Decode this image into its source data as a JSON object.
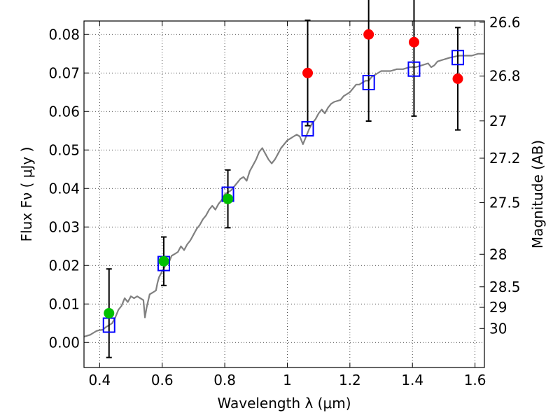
{
  "chart_data": {
    "type": "scatter",
    "xlabel": "Wavelength  λ (μm)",
    "ylabel": "Flux  Fν  ( μJy )",
    "right_ylabel": "Magnitude (AB)",
    "xlim": [
      0.35,
      1.63
    ],
    "ylim": [
      -0.0065,
      0.0835
    ],
    "grid": true,
    "x_ticks": [
      0.4,
      0.6,
      0.8,
      1.0,
      1.2,
      1.4,
      1.6
    ],
    "x_tick_labels": [
      "0.4",
      "0.6",
      "0.8",
      "1",
      "1.2",
      "1.4",
      "1.6"
    ],
    "y_ticks": [
      0.0,
      0.01,
      0.02,
      0.03,
      0.04,
      0.05,
      0.06,
      0.07,
      0.08
    ],
    "y_tick_labels": [
      "0.00",
      "0.01",
      "0.02",
      "0.03",
      "0.04",
      "0.05",
      "0.06",
      "0.07",
      "0.08"
    ],
    "magnitude_ticks": [
      {
        "label": "26.6",
        "mag": 26.6
      },
      {
        "label": "26.8",
        "mag": 26.8
      },
      {
        "label": "27",
        "mag": 27.0
      },
      {
        "label": "27.2",
        "mag": 27.2
      },
      {
        "label": "27.5",
        "mag": 27.5
      },
      {
        "label": "28",
        "mag": 28.0
      },
      {
        "label": "28.5",
        "mag": 28.5
      },
      {
        "label": "29",
        "mag": 29.0
      },
      {
        "label": "30",
        "mag": 30.0
      }
    ],
    "model_spectrum": {
      "color": "#808080",
      "points": [
        [
          0.35,
          0.0015
        ],
        [
          0.37,
          0.002
        ],
        [
          0.38,
          0.0025
        ],
        [
          0.39,
          0.003
        ],
        [
          0.4,
          0.0032
        ],
        [
          0.41,
          0.0033
        ],
        [
          0.42,
          0.004
        ],
        [
          0.43,
          0.0045
        ],
        [
          0.44,
          0.005
        ],
        [
          0.45,
          0.0065
        ],
        [
          0.46,
          0.0085
        ],
        [
          0.47,
          0.0095
        ],
        [
          0.48,
          0.0115
        ],
        [
          0.49,
          0.0105
        ],
        [
          0.5,
          0.012
        ],
        [
          0.51,
          0.0115
        ],
        [
          0.52,
          0.012
        ],
        [
          0.53,
          0.0115
        ],
        [
          0.54,
          0.011
        ],
        [
          0.545,
          0.0065
        ],
        [
          0.55,
          0.009
        ],
        [
          0.56,
          0.0125
        ],
        [
          0.57,
          0.013
        ],
        [
          0.58,
          0.0135
        ],
        [
          0.585,
          0.0155
        ],
        [
          0.59,
          0.017
        ],
        [
          0.6,
          0.0185
        ],
        [
          0.61,
          0.02
        ],
        [
          0.62,
          0.0205
        ],
        [
          0.625,
          0.0215
        ],
        [
          0.63,
          0.0225
        ],
        [
          0.64,
          0.023
        ],
        [
          0.65,
          0.0235
        ],
        [
          0.66,
          0.025
        ],
        [
          0.67,
          0.024
        ],
        [
          0.68,
          0.0255
        ],
        [
          0.69,
          0.0265
        ],
        [
          0.7,
          0.028
        ],
        [
          0.71,
          0.0295
        ],
        [
          0.72,
          0.0305
        ],
        [
          0.73,
          0.032
        ],
        [
          0.74,
          0.033
        ],
        [
          0.75,
          0.0345
        ],
        [
          0.76,
          0.0355
        ],
        [
          0.77,
          0.0345
        ],
        [
          0.78,
          0.036
        ],
        [
          0.79,
          0.037
        ],
        [
          0.8,
          0.0385
        ],
        [
          0.81,
          0.039
        ],
        [
          0.82,
          0.0395
        ],
        [
          0.83,
          0.0405
        ],
        [
          0.84,
          0.0415
        ],
        [
          0.85,
          0.0425
        ],
        [
          0.86,
          0.043
        ],
        [
          0.87,
          0.042
        ],
        [
          0.88,
          0.0445
        ],
        [
          0.89,
          0.046
        ],
        [
          0.9,
          0.0475
        ],
        [
          0.91,
          0.0495
        ],
        [
          0.92,
          0.0505
        ],
        [
          0.93,
          0.049
        ],
        [
          0.94,
          0.0475
        ],
        [
          0.95,
          0.0465
        ],
        [
          0.96,
          0.0475
        ],
        [
          0.97,
          0.049
        ],
        [
          0.98,
          0.0505
        ],
        [
          0.99,
          0.0515
        ],
        [
          1.0,
          0.0525
        ],
        [
          1.01,
          0.053
        ],
        [
          1.02,
          0.0535
        ],
        [
          1.03,
          0.054
        ],
        [
          1.04,
          0.0535
        ],
        [
          1.05,
          0.0515
        ],
        [
          1.06,
          0.0535
        ],
        [
          1.07,
          0.0555
        ],
        [
          1.08,
          0.057
        ],
        [
          1.09,
          0.058
        ],
        [
          1.1,
          0.0595
        ],
        [
          1.11,
          0.0605
        ],
        [
          1.12,
          0.0595
        ],
        [
          1.13,
          0.061
        ],
        [
          1.14,
          0.062
        ],
        [
          1.15,
          0.0625
        ],
        [
          1.17,
          0.063
        ],
        [
          1.18,
          0.064
        ],
        [
          1.19,
          0.0645
        ],
        [
          1.2,
          0.065
        ],
        [
          1.21,
          0.066
        ],
        [
          1.22,
          0.067
        ],
        [
          1.23,
          0.067
        ],
        [
          1.24,
          0.0675
        ],
        [
          1.25,
          0.068
        ],
        [
          1.26,
          0.068
        ],
        [
          1.27,
          0.069
        ],
        [
          1.28,
          0.0695
        ],
        [
          1.3,
          0.0705
        ],
        [
          1.32,
          0.0705
        ],
        [
          1.33,
          0.0705
        ],
        [
          1.35,
          0.071
        ],
        [
          1.37,
          0.071
        ],
        [
          1.39,
          0.0715
        ],
        [
          1.41,
          0.0715
        ],
        [
          1.43,
          0.072
        ],
        [
          1.45,
          0.0725
        ],
        [
          1.46,
          0.0715
        ],
        [
          1.47,
          0.072
        ],
        [
          1.48,
          0.073
        ],
        [
          1.5,
          0.0735
        ],
        [
          1.52,
          0.074
        ],
        [
          1.55,
          0.0745
        ],
        [
          1.57,
          0.0745
        ],
        [
          1.59,
          0.0745
        ],
        [
          1.61,
          0.075
        ],
        [
          1.63,
          0.075
        ]
      ]
    },
    "series": [
      {
        "marker": "open-square",
        "color": "#0000ff",
        "points": [
          {
            "x": 0.43,
            "y": 0.0045
          },
          {
            "x": 0.605,
            "y": 0.0205
          },
          {
            "x": 0.81,
            "y": 0.0385
          },
          {
            "x": 1.065,
            "y": 0.0555
          },
          {
            "x": 1.26,
            "y": 0.0675
          },
          {
            "x": 1.405,
            "y": 0.071
          },
          {
            "x": 1.545,
            "y": 0.074
          }
        ]
      },
      {
        "marker": "filled-circle",
        "color": "#00c000",
        "points": [
          {
            "x": 0.43,
            "y": 0.0076,
            "err": 0.0115
          },
          {
            "x": 0.605,
            "y": 0.0211,
            "err": 0.0063
          },
          {
            "x": 0.81,
            "y": 0.0373,
            "err": 0.0075
          }
        ]
      },
      {
        "marker": "filled-circle",
        "color": "#ff0000",
        "points": [
          {
            "x": 1.065,
            "y": 0.07,
            "err": 0.0137
          },
          {
            "x": 1.26,
            "y": 0.08,
            "err": 0.0225
          },
          {
            "x": 1.405,
            "y": 0.078,
            "err": 0.0192
          },
          {
            "x": 1.545,
            "y": 0.0685,
            "err": 0.0133
          }
        ]
      }
    ]
  }
}
